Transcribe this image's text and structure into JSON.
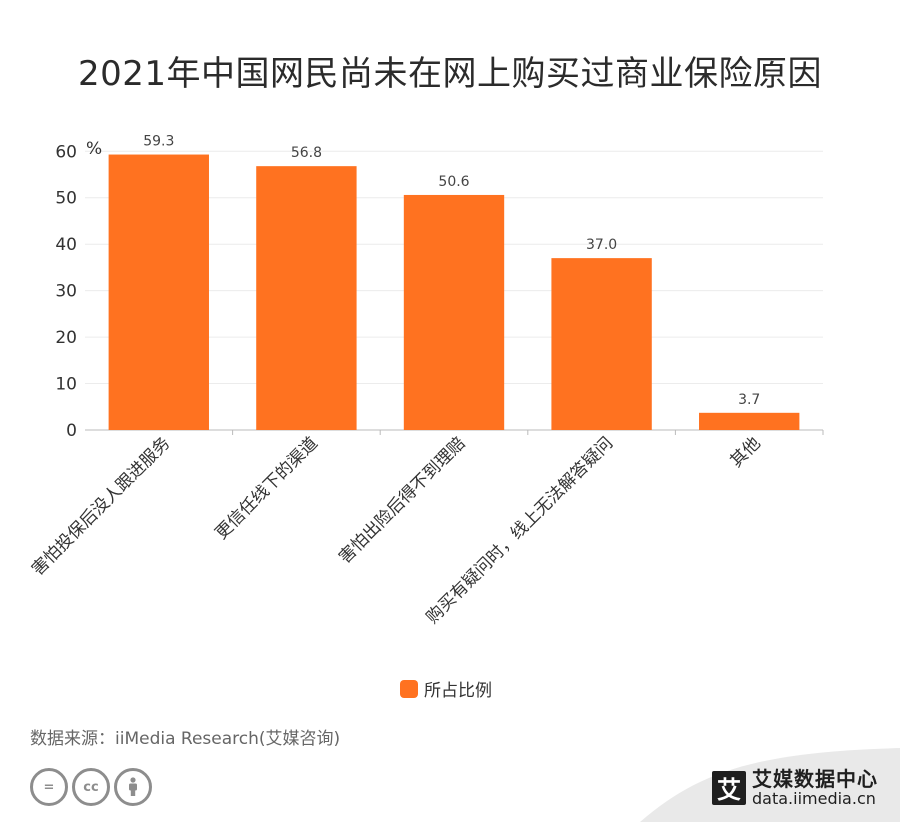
{
  "title": "2021年中国网民尚未在网上购买过商业保险原因",
  "chart_data": {
    "type": "bar",
    "title": "2021年中国网民尚未在网上购买过商业保险原因",
    "unit_label": "%",
    "categories": [
      "害怕投保后没人跟进服务",
      "更信任线下的渠道",
      "害怕出险后得不到理赔",
      "购买有疑问时，线上无法解答疑问",
      "其他"
    ],
    "series": [
      {
        "name": "所占比例",
        "values": [
          59.3,
          56.8,
          50.6,
          37.0,
          3.7
        ],
        "color": "#ff7220"
      }
    ],
    "data_labels": [
      "59.3",
      "56.8",
      "50.6",
      "37.0",
      "3.7"
    ],
    "yticks": [
      0,
      10,
      20,
      30,
      40,
      50,
      60
    ],
    "ylim": [
      0,
      62
    ],
    "grid": true,
    "legend_position": "bottom-center"
  },
  "legend": {
    "label": "所占比例"
  },
  "source": "数据来源：iiMedia Research(艾媒咨询)",
  "footer": {
    "cc_icons": [
      "=",
      "cc",
      "person"
    ],
    "brand_logo": "艾",
    "brand_name": "艾媒数据中心",
    "brand_url": "data.iimedia.cn"
  }
}
